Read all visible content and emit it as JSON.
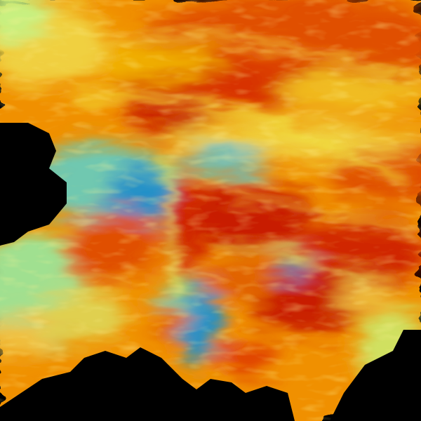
{
  "image": {
    "kind": "weather radar sweep",
    "background_color": "#000000",
    "palette": {
      "deep_red": "#c81e00",
      "red": "#dc3c00",
      "orange": "#f07800",
      "amber": "#f0b400",
      "yellow": "#f0e040",
      "light_green": "#c8f080",
      "green": "#90d890",
      "cyan": "#60c0c0",
      "blue": "#2090c8",
      "dark_blue": "#1060a8"
    }
  }
}
